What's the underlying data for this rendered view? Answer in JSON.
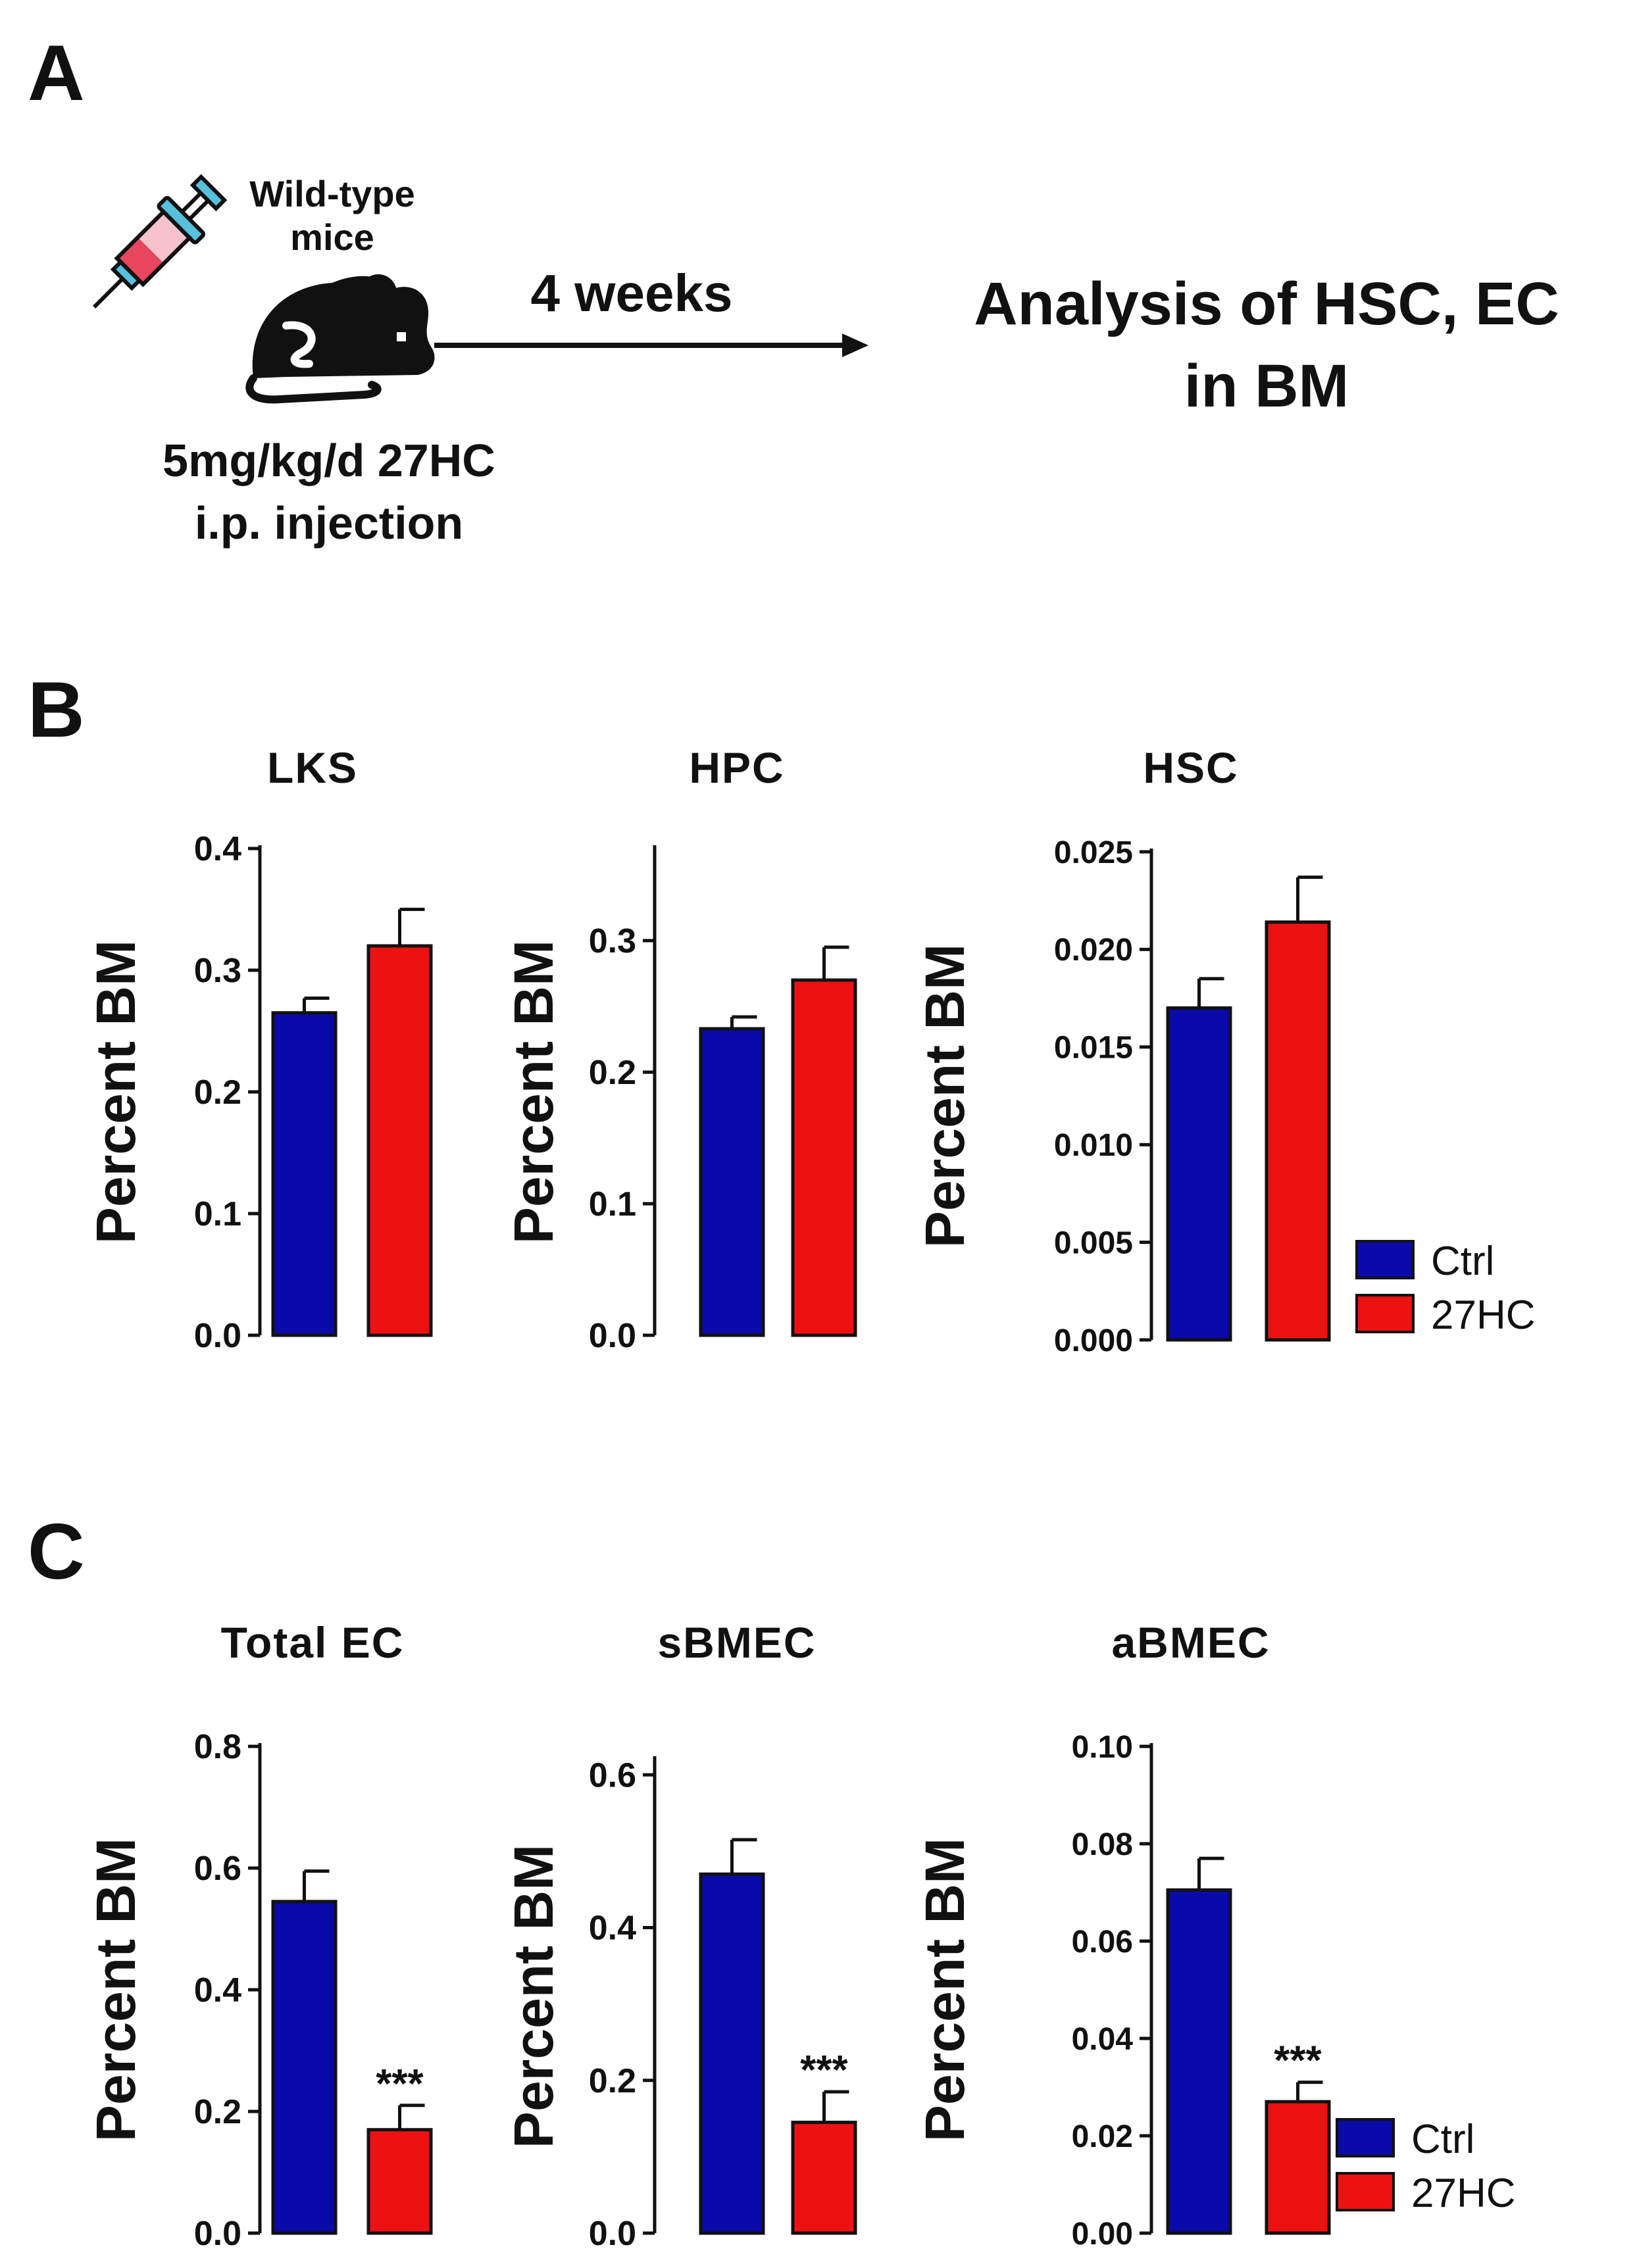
{
  "panels": {
    "a": "A",
    "b": "B",
    "c": "C"
  },
  "schematic": {
    "mouse_label_line1": "Wild-type",
    "mouse_label_line2": "mice",
    "duration": "4 weeks",
    "treatment_line1": "5mg/kg/d 27HC",
    "treatment_line2": "i.p. injection",
    "outcome_line1": "Analysis of HSC, EC",
    "outcome_line2": "in BM",
    "icons": [
      "syringe-icon",
      "mouse-icon",
      "arrow-icon"
    ]
  },
  "colors": {
    "ctrl": "#0a0aa8",
    "hc27": "#ee1111",
    "axis": "#111111"
  },
  "legend": {
    "ctrl": "Ctrl",
    "hc27": "27HC"
  },
  "chart_data": [
    {
      "id": "lks",
      "type": "bar",
      "title": "LKS",
      "ylabel": "Percent BM",
      "categories": [
        "Ctrl",
        "27HC"
      ],
      "values": [
        0.265,
        0.32
      ],
      "errors": [
        0.012,
        0.03
      ],
      "ylim": [
        0,
        0.4
      ],
      "ticks": [
        "0.0",
        "0.1",
        "0.2",
        "0.3",
        "0.4"
      ],
      "tick_values": [
        0,
        0.1,
        0.2,
        0.3,
        0.4
      ],
      "sig": [
        "",
        ""
      ]
    },
    {
      "id": "hpc",
      "type": "bar",
      "title": "HPC",
      "ylabel": "Percent BM",
      "categories": [
        "Ctrl",
        "27HC"
      ],
      "values": [
        0.233,
        0.27
      ],
      "errors": [
        0.009,
        0.025
      ],
      "ylim": [
        0,
        0.37
      ],
      "ticks": [
        "0.0",
        "0.1",
        "0.2",
        "0.3"
      ],
      "tick_values": [
        0,
        0.1,
        0.2,
        0.3
      ],
      "sig": [
        "",
        ""
      ]
    },
    {
      "id": "hsc",
      "type": "bar",
      "title": "HSC",
      "ylabel": "Percent BM",
      "categories": [
        "Ctrl",
        "27HC"
      ],
      "values": [
        0.017,
        0.0214
      ],
      "errors": [
        0.0015,
        0.0023
      ],
      "ylim": [
        0,
        0.025
      ],
      "ticks": [
        "0.000",
        "0.005",
        "0.010",
        "0.015",
        "0.020",
        "0.025"
      ],
      "tick_values": [
        0,
        0.005,
        0.01,
        0.015,
        0.02,
        0.025
      ],
      "sig": [
        "",
        ""
      ]
    },
    {
      "id": "total_ec",
      "type": "bar",
      "title": "Total EC",
      "ylabel": "Percent BM",
      "categories": [
        "Ctrl",
        "27HC"
      ],
      "values": [
        0.545,
        0.17
      ],
      "errors": [
        0.05,
        0.04
      ],
      "ylim": [
        0,
        0.8
      ],
      "ticks": [
        "0.0",
        "0.2",
        "0.4",
        "0.6",
        "0.8"
      ],
      "tick_values": [
        0,
        0.2,
        0.4,
        0.6,
        0.8
      ],
      "sig": [
        "",
        "***"
      ]
    },
    {
      "id": "sbmec",
      "type": "bar",
      "title": "sBMEC",
      "ylabel": "Percent BM",
      "categories": [
        "Ctrl",
        "27HC"
      ],
      "values": [
        0.47,
        0.145
      ],
      "errors": [
        0.045,
        0.04
      ],
      "ylim": [
        0,
        0.62
      ],
      "ticks": [
        "0.0",
        "0.2",
        "0.4",
        "0.6"
      ],
      "tick_values": [
        0,
        0.2,
        0.4,
        0.6
      ],
      "sig": [
        "",
        "***"
      ]
    },
    {
      "id": "abmec",
      "type": "bar",
      "title": "aBMEC",
      "ylabel": "Percent BM",
      "categories": [
        "Ctrl",
        "27HC"
      ],
      "values": [
        0.0705,
        0.027
      ],
      "errors": [
        0.0065,
        0.004
      ],
      "ylim": [
        0,
        0.1
      ],
      "ticks": [
        "0.00",
        "0.02",
        "0.04",
        "0.06",
        "0.08",
        "0.10"
      ],
      "tick_values": [
        0,
        0.02,
        0.04,
        0.06,
        0.08,
        0.1
      ],
      "sig": [
        "",
        "***"
      ]
    }
  ]
}
